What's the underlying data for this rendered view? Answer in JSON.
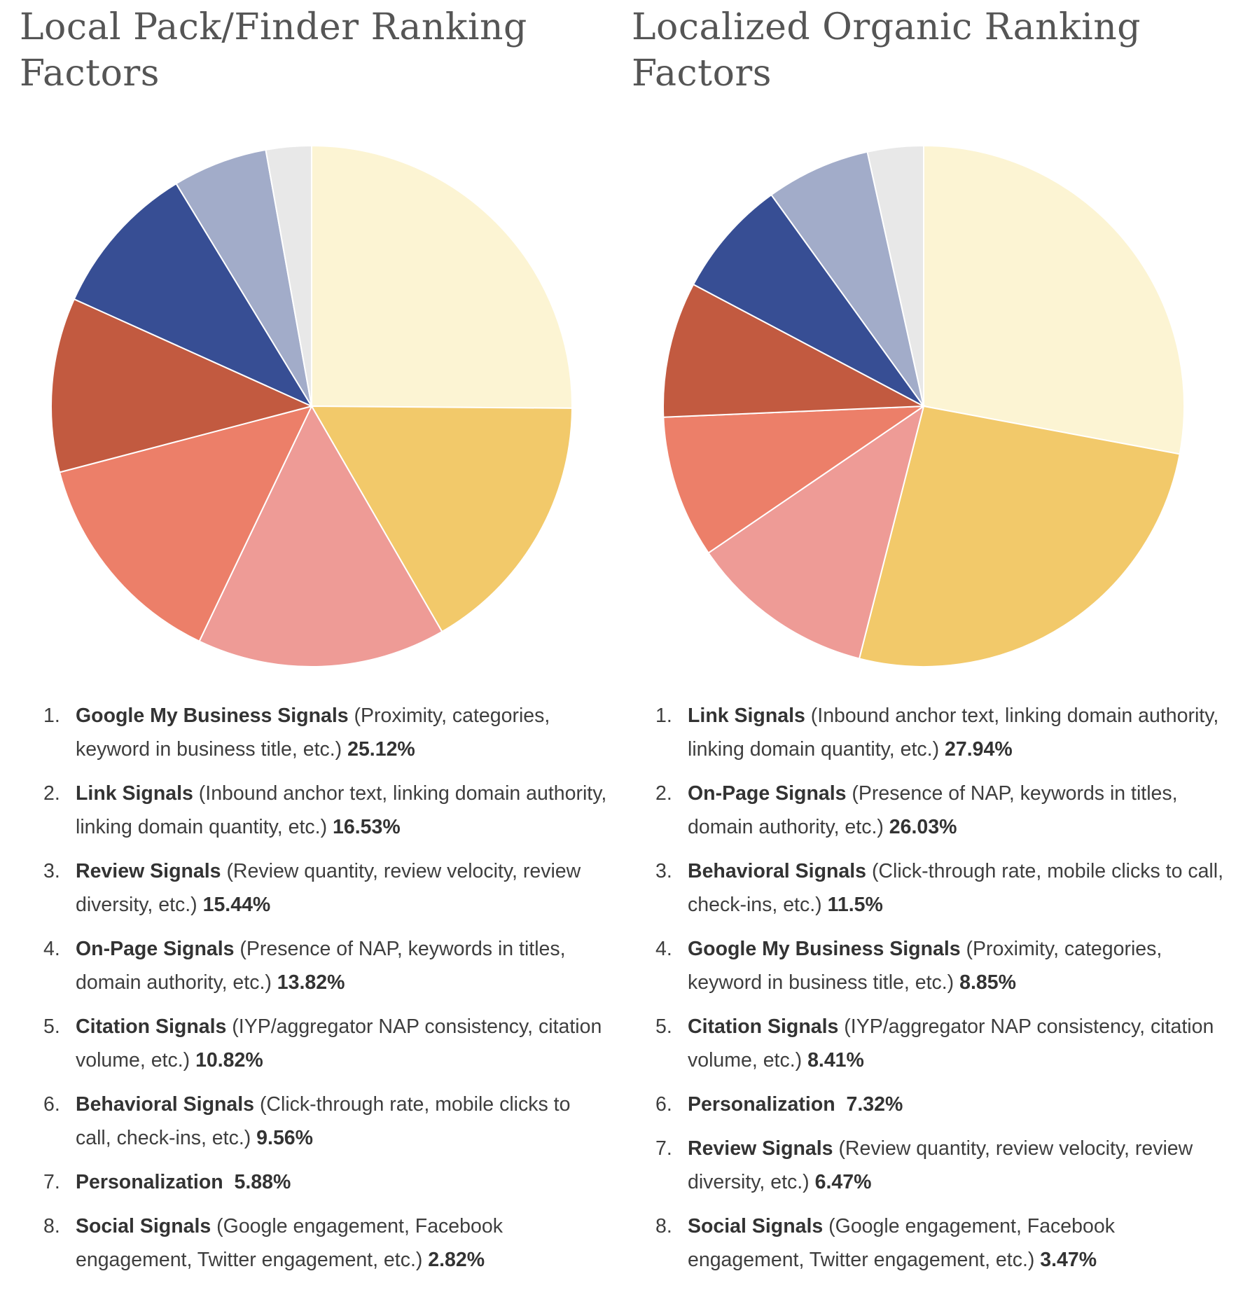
{
  "chart_data": [
    {
      "type": "pie",
      "title": "Local Pack/Finder Ranking Factors",
      "slices": [
        {
          "name": "Google My Business Signals",
          "desc": "(Proximity, categories, keyword in business title, etc.)",
          "value_label": "25.12%",
          "value": 25.12,
          "color": "#FCF4D3"
        },
        {
          "name": "Link Signals",
          "desc": "(Inbound anchor text, linking domain authority, linking domain quantity, etc.)",
          "value_label": "16.53%",
          "value": 16.53,
          "color": "#F2C96A"
        },
        {
          "name": "Review Signals",
          "desc": "(Review quantity, review velocity, review diversity, etc.)",
          "value_label": "15.44%",
          "value": 15.44,
          "color": "#EE9B96"
        },
        {
          "name": "On-Page Signals",
          "desc": "(Presence of NAP, keywords in titles, domain authority, etc.)",
          "value_label": "13.82%",
          "value": 13.82,
          "color": "#EC7F69"
        },
        {
          "name": "Citation Signals",
          "desc": "(IYP/aggregator NAP consistency, citation volume, etc.)",
          "value_label": "10.82%",
          "value": 10.82,
          "color": "#C25A40"
        },
        {
          "name": "Behavioral Signals",
          "desc": "(Click-through rate, mobile clicks to call, check-ins, etc.)",
          "value_label": "9.56%",
          "value": 9.56,
          "color": "#374E94"
        },
        {
          "name": "Personalization",
          "desc": "",
          "value_label": "5.88%",
          "value": 5.88,
          "color": "#A2ACC9"
        },
        {
          "name": "Social Signals",
          "desc": "(Google engagement, Facebook engagement, Twitter engagement, etc.)",
          "value_label": "2.82%",
          "value": 2.82,
          "color": "#E8E8E8"
        }
      ]
    },
    {
      "type": "pie",
      "title": "Localized Organic Ranking Factors",
      "slices": [
        {
          "name": "Link Signals",
          "desc": "(Inbound anchor text, linking domain authority, linking domain quantity, etc.)",
          "value_label": "27.94%",
          "value": 27.94,
          "color": "#FCF4D3"
        },
        {
          "name": "On-Page Signals",
          "desc": "(Presence of NAP, keywords in titles, domain authority, etc.)",
          "value_label": "26.03%",
          "value": 26.03,
          "color": "#F2C96A"
        },
        {
          "name": "Behavioral Signals",
          "desc": "(Click-through rate, mobile clicks to call, check-ins, etc.)",
          "value_label": "11.5%",
          "value": 11.5,
          "color": "#EE9B96"
        },
        {
          "name": "Google My Business Signals",
          "desc": "(Proximity, categories, keyword in business title, etc.)",
          "value_label": "8.85%",
          "value": 8.85,
          "color": "#EC7F69"
        },
        {
          "name": "Citation Signals",
          "desc": "(IYP/aggregator NAP consistency, citation volume, etc.)",
          "value_label": "8.41%",
          "value": 8.41,
          "color": "#C25A40"
        },
        {
          "name": "Personalization",
          "desc": "",
          "value_label": "7.32%",
          "value": 7.32,
          "color": "#374E94"
        },
        {
          "name": "Review Signals",
          "desc": "(Review quantity, review velocity, review diversity, etc.)",
          "value_label": "6.47%",
          "value": 6.47,
          "color": "#A2ACC9"
        },
        {
          "name": "Social Signals",
          "desc": "(Google engagement, Facebook engagement, Twitter engagement, etc.)",
          "value_label": "3.47%",
          "value": 3.47,
          "color": "#E8E8E8"
        }
      ]
    }
  ]
}
